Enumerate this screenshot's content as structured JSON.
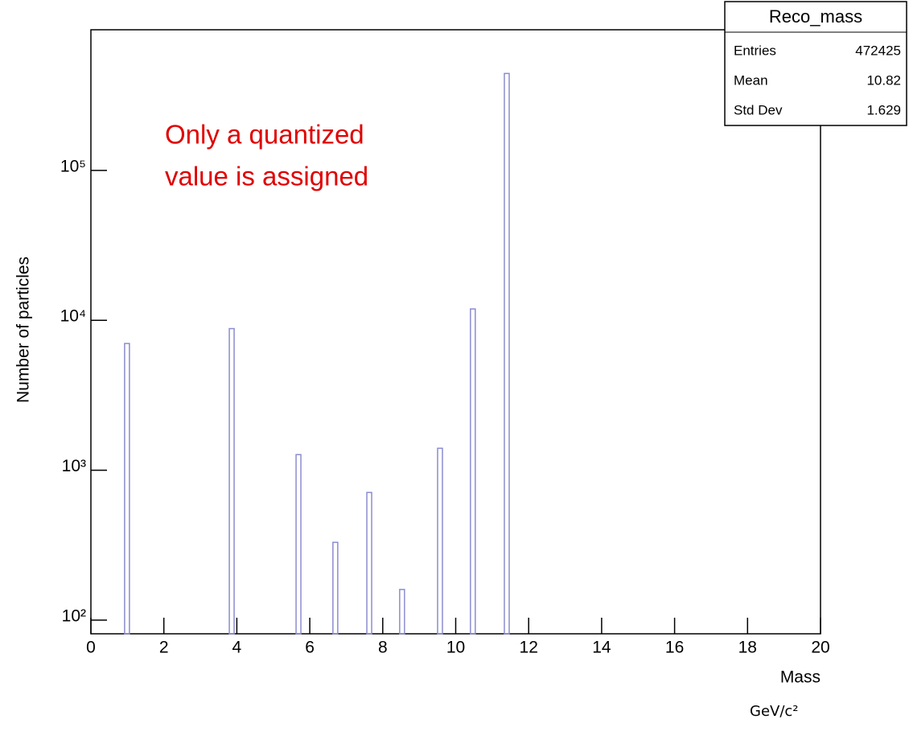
{
  "chart_data": {
    "type": "bar",
    "y_label": "Number of particles",
    "x_label": "Mass",
    "x_unit": "GeV/c²",
    "annotation": [
      "Only a quantized",
      "value is assigned"
    ],
    "x": [
      0.99,
      3.86,
      5.69,
      6.7,
      7.63,
      8.53,
      9.57,
      10.47,
      11.4
    ],
    "values": [
      7000,
      8800,
      1270,
      330,
      710,
      160,
      1400,
      11900,
      443000
    ],
    "color": "#8c8cd0",
    "xlim": [
      0,
      20
    ],
    "xticks": [
      0,
      2,
      4,
      6,
      8,
      10,
      12,
      14,
      16,
      18,
      20
    ],
    "ylim": [
      81,
      867000
    ],
    "yticks": [
      {
        "value": 100,
        "label": "10²"
      },
      {
        "value": 1000,
        "label": "10³"
      },
      {
        "value": 10000,
        "label": "10⁴"
      },
      {
        "value": 100000,
        "label": "10⁵"
      }
    ],
    "log_y": true,
    "stats_box": {
      "title": "Reco_mass",
      "rows": [
        [
          "Entries",
          "472425"
        ],
        [
          "Mean",
          "10.82"
        ],
        [
          "Std Dev",
          "1.629"
        ]
      ]
    }
  }
}
